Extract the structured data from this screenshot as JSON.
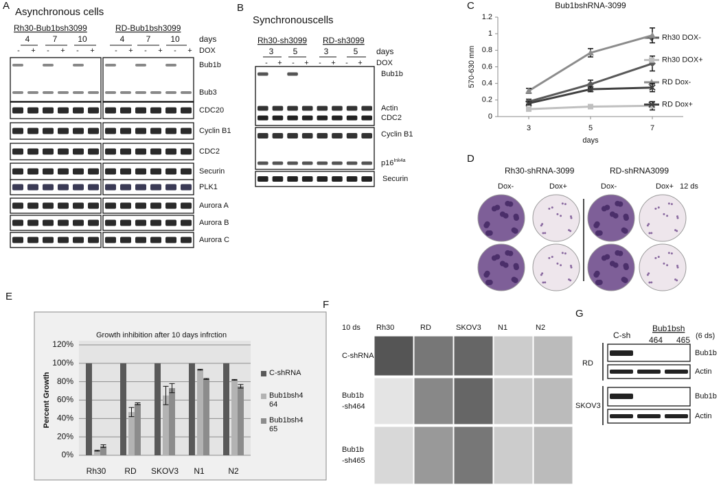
{
  "panel_letters": [
    "A",
    "B",
    "C",
    "D",
    "E",
    "F",
    "G"
  ],
  "panel_a": {
    "title": "Asynchronous cells",
    "groups": [
      "Rh30-Bub1bsh3099",
      "RD-Bub1bsh3099"
    ],
    "days": [
      4,
      7,
      10,
      4,
      7,
      10
    ],
    "days_label": "days",
    "dox": [
      "-",
      "+",
      "-",
      "+",
      "-",
      "+",
      "-",
      "+",
      "-",
      "+",
      "-",
      "+"
    ],
    "dox_label": "DOX",
    "rows": [
      "Bub1b",
      "Bub3",
      "CDC20",
      "Cyclin B1",
      "CDC2",
      "Securin",
      "PLK1",
      "Aurora A",
      "Aurora B",
      "Aurora C"
    ]
  },
  "panel_b": {
    "title": "Synchronouscells",
    "groups": [
      "Rh30-sh3099",
      "RD-sh3099"
    ],
    "days": [
      3,
      5,
      3,
      5
    ],
    "days_label": "days",
    "dox": [
      "-",
      "+",
      "-",
      "+",
      "-",
      "+",
      "-",
      "+"
    ],
    "dox_label": "DOX",
    "rows": [
      "Bub1b",
      "Actin",
      "CDC2",
      "Cyclin  B1"
    ],
    "p16": {
      "text": "p16",
      "sup": "Ink4a"
    },
    "last_row": "Securin"
  },
  "panel_d": {
    "groups": [
      "Rh30-shRNA-3099",
      "RD-shRNA3099"
    ],
    "conditions": [
      "Dox-",
      "Dox+",
      "Dox-",
      "Dox+"
    ],
    "time": "12 ds"
  },
  "panel_f": {
    "time": "10 ds",
    "columns": [
      "Rh30",
      "RD",
      "SKOV3",
      "N1",
      "N2"
    ],
    "rows": [
      [
        "C-shRNA"
      ],
      [
        "Bub1b",
        "-sh464"
      ],
      [
        "Bub1b",
        "-sh465"
      ]
    ]
  },
  "panel_g": {
    "control": "C-sh",
    "group": "Bub1bsh",
    "clones": [
      464,
      465
    ],
    "time": "(6 ds)",
    "cell_lines": [
      {
        "name": "RD",
        "rows": [
          "Bub1b",
          "Actin"
        ]
      },
      {
        "name": "SKOV3",
        "rows": [
          "Bub1b",
          "Actin"
        ]
      }
    ]
  },
  "chart_data": [
    {
      "type": "line",
      "title": "Bub1bshRNA-3099",
      "x_label": "days",
      "y_label": "570-630 mm",
      "x": [
        3,
        5,
        7
      ],
      "xlim": [
        2,
        8
      ],
      "xticks": [
        3,
        5,
        7
      ],
      "ylim": [
        0,
        1.2
      ],
      "yticks": [
        0,
        0.2,
        0.4,
        0.6,
        0.8,
        1,
        1.2
      ],
      "series": [
        {
          "name": "Rh30 DOX-",
          "color": "#595959",
          "marker": "diamond",
          "values": [
            0.18,
            0.39,
            0.64
          ],
          "errors": [
            0.03,
            0.05,
            0.09
          ]
        },
        {
          "name": "Rh30 DOX+",
          "color": "#bfbfbf",
          "marker": "square",
          "values": [
            0.09,
            0.12,
            0.13
          ],
          "errors": [
            0.01,
            0.02,
            0.05
          ]
        },
        {
          "name": "RD Dox-",
          "color": "#8c8c8c",
          "marker": "triangle",
          "values": [
            0.31,
            0.77,
            0.98
          ],
          "errors": [
            0.03,
            0.05,
            0.09
          ]
        },
        {
          "name": "RD Dox+",
          "color": "#404040",
          "marker": "x",
          "values": [
            0.16,
            0.33,
            0.35
          ],
          "errors": [
            0.02,
            0.03,
            0.05
          ]
        }
      ]
    },
    {
      "type": "bar",
      "title": "Growth inhibition after 10 days infrction",
      "y_label": "Percent Growth",
      "categories": [
        "Rh30",
        "RD",
        "SKOV3",
        "N1",
        "N2"
      ],
      "ylim": [
        0,
        120
      ],
      "yticks": [
        {
          "value": 0,
          "label": "0%"
        },
        {
          "value": 20,
          "label": "20%"
        },
        {
          "value": 40,
          "label": "40%"
        },
        {
          "value": 60,
          "label": "60%"
        },
        {
          "value": 80,
          "label": "80%"
        },
        {
          "value": 100,
          "label": "100%"
        },
        {
          "value": 120,
          "label": "120%"
        }
      ],
      "grid": true,
      "series": [
        {
          "name": "C-shRNA",
          "color": "#595959",
          "values": [
            100,
            100,
            100,
            100,
            100
          ]
        },
        {
          "name": "Bub1bsh464",
          "color": "#b3b3b3",
          "values": [
            5,
            47,
            65,
            93,
            82
          ],
          "errors": [
            0.5,
            5,
            10,
            0.5,
            0.5
          ]
        },
        {
          "name": "Bub1bsh465",
          "color": "#8c8c8c",
          "values": [
            10,
            56,
            73,
            83,
            75
          ],
          "errors": [
            1.5,
            1,
            5,
            0.5,
            2
          ]
        }
      ]
    }
  ]
}
